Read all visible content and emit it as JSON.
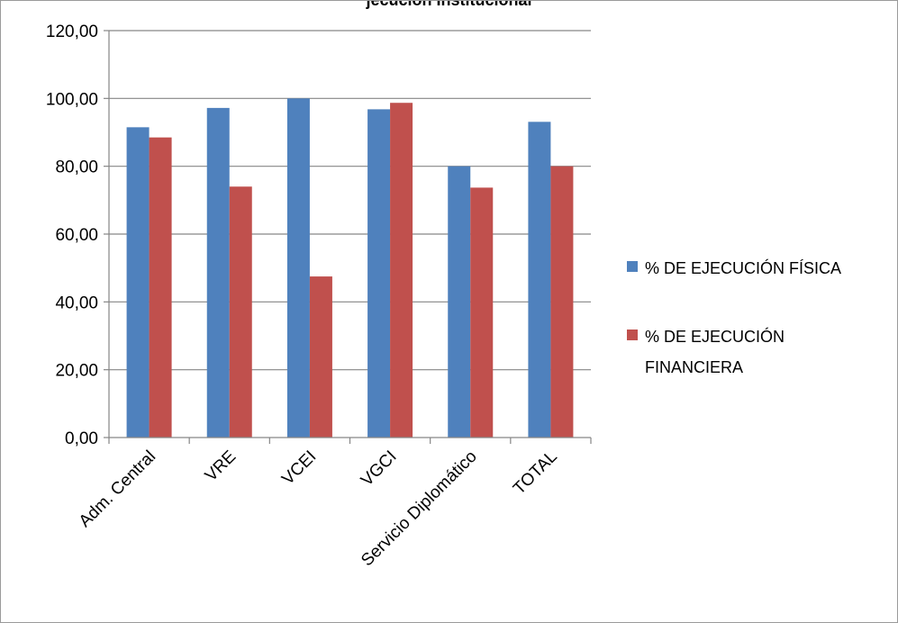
{
  "chart_data": {
    "type": "bar",
    "title": "jecución Institucional",
    "categories": [
      "Adm. Central",
      "VRE",
      "VCEI",
      "VGCI",
      "Servicio Diplomático",
      "TOTAL"
    ],
    "series": [
      {
        "name": "% DE EJECUCIÓN  FÍSICA",
        "color": "#4F81BD",
        "values": [
          91.5,
          97.2,
          100.0,
          96.8,
          80.0,
          93.1
        ]
      },
      {
        "name": "% DE EJECUCIÓN FINANCIERA",
        "legend_lines": [
          "% DE EJECUCIÓN",
          "FINANCIERA"
        ],
        "color": "#C0504D",
        "values": [
          88.5,
          74.0,
          47.5,
          98.7,
          73.7,
          80.0
        ]
      }
    ],
    "ylim": [
      0,
      120
    ],
    "yticks": [
      0,
      20,
      40,
      60,
      80,
      100,
      120
    ],
    "ytick_labels": [
      "0,00",
      "20,00",
      "40,00",
      "60,00",
      "80,00",
      "100,00",
      "120,00"
    ],
    "grid": true,
    "legend_position": "right"
  }
}
